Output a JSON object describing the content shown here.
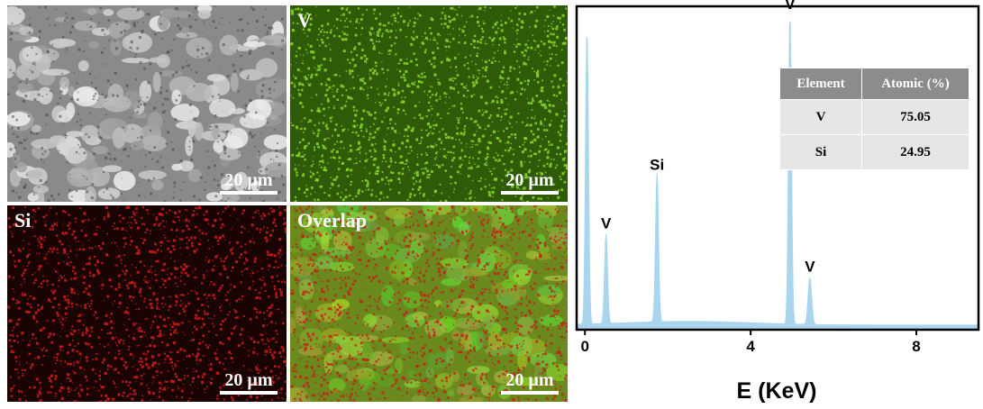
{
  "panels": [
    {
      "id": "sem",
      "label": "",
      "scale": "20 µm",
      "base": "#8a8a8a",
      "dot": "#d0d0d0"
    },
    {
      "id": "v",
      "label": "V",
      "scale": "20 µm",
      "base": "#2f5a08",
      "dot": "#86d02a"
    },
    {
      "id": "si",
      "label": "Si",
      "scale": "20 µm",
      "base": "#1a0303",
      "dot": "#c81a1a"
    },
    {
      "id": "overlap",
      "label": "Overlap",
      "scale": "20 µm",
      "base": "#6a8a1e",
      "dot": "#c81a1a"
    }
  ],
  "chart_data": {
    "type": "area",
    "xlabel": "E (KeV)",
    "ylabel": "",
    "xlim": [
      -0.2,
      9.5
    ],
    "x_ticks": [
      "0",
      "4",
      "8"
    ],
    "fill_color": "#a9d6ee",
    "peaks": [
      {
        "x": 0.05,
        "height": 0.95,
        "width": 0.05,
        "label": ""
      },
      {
        "x": 0.51,
        "height": 0.29,
        "width": 0.05,
        "label": "V"
      },
      {
        "x": 1.74,
        "height": 0.48,
        "width": 0.05,
        "label": "Si"
      },
      {
        "x": 4.95,
        "height": 1.0,
        "width": 0.05,
        "label": "V"
      },
      {
        "x": 5.43,
        "height": 0.15,
        "width": 0.06,
        "label": "V"
      }
    ],
    "table": {
      "headers": [
        "Element",
        "Atomic (%)"
      ],
      "rows": [
        [
          "V",
          "75.05"
        ],
        [
          "Si",
          "24.95"
        ]
      ]
    }
  }
}
